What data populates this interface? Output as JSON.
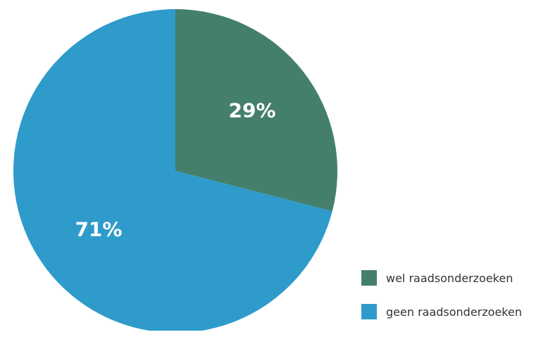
{
  "chart_data": {
    "type": "pie",
    "title": "",
    "slices": [
      {
        "label": "wel raadsonderzoeken",
        "value": 29,
        "display": "29%",
        "color": "#447f6c"
      },
      {
        "label": "geen raadsonderzoeken",
        "value": 71,
        "display": "71%",
        "color": "#2e9bcb"
      }
    ],
    "legend_position": "bottom-right"
  }
}
